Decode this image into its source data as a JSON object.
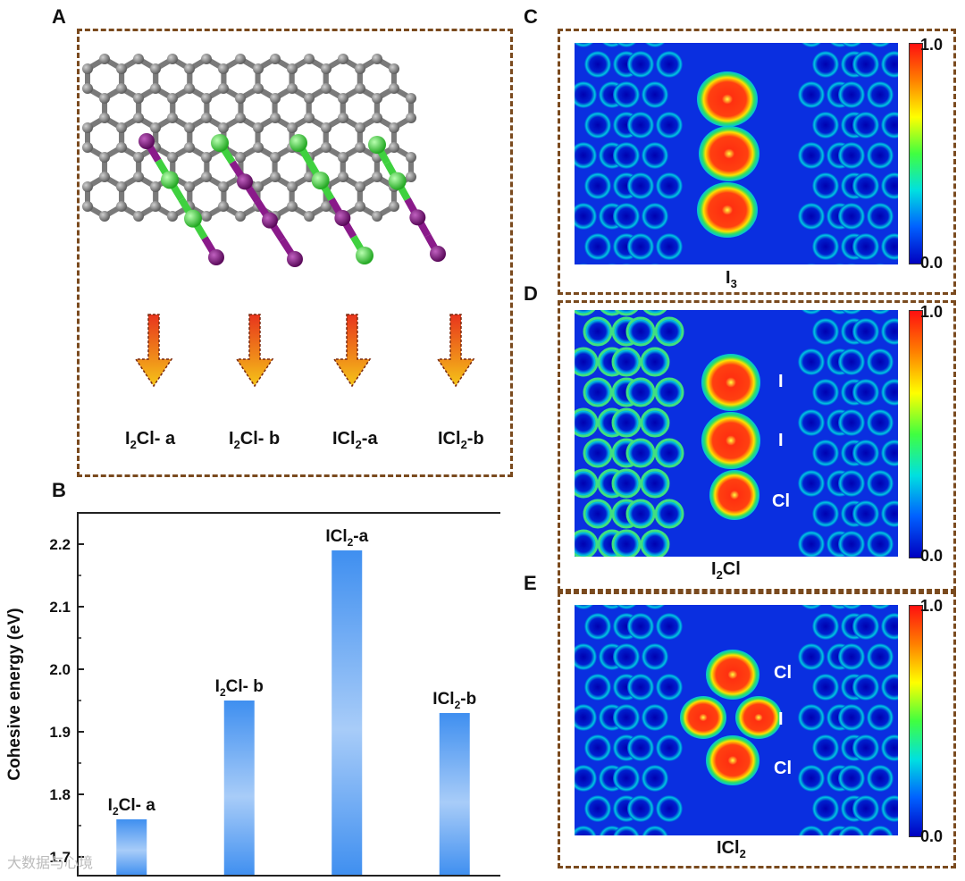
{
  "panels": {
    "A": "A",
    "B": "B",
    "C": "C",
    "D": "D",
    "E": "E"
  },
  "panel_a": {
    "configs": [
      {
        "main": "I",
        "sub": "2",
        "rest": "Cl- a"
      },
      {
        "main": "I",
        "sub": "2",
        "rest": "Cl- b"
      },
      {
        "main": "ICl",
        "sub": "2",
        "rest": "-a"
      },
      {
        "main": "ICl",
        "sub": "2",
        "rest": "-b"
      }
    ],
    "colors": {
      "carbon": "#7a7a7a",
      "iodine": "#8a1a8a",
      "chlorine": "#3fd13f",
      "arrow_top": "#e8341c",
      "arrow_bottom": "#f5c518"
    }
  },
  "maps": {
    "C": {
      "caption_main": "I",
      "caption_sub": "3",
      "atom_labels": []
    },
    "D": {
      "caption_main": "I",
      "caption_sub": "2",
      "caption_rest": "Cl",
      "atom_labels": [
        "I",
        "I",
        "Cl"
      ]
    },
    "E": {
      "caption_main": "ICl",
      "caption_sub": "2",
      "caption_rest": "",
      "atom_labels": [
        "Cl",
        "I",
        "Cl"
      ]
    },
    "colorbar": {
      "max_label": "1.0",
      "min_label": "0.0"
    }
  },
  "chart_data": {
    "type": "bar",
    "categories": [
      "I2Cl- a",
      "I2Cl- b",
      "ICl2-a",
      "ICl2-b"
    ],
    "values": [
      1.76,
      1.95,
      2.19,
      1.93
    ],
    "ylabel": "Cohesive energy (eV)",
    "ylim": [
      1.67,
      2.25
    ],
    "yticks": [
      "1.7",
      "1.8",
      "1.9",
      "2.0",
      "2.1",
      "2.2"
    ],
    "bar_color": "#3f8ff0",
    "grid": false,
    "legend": "none"
  },
  "watermark": "大数据与心境"
}
